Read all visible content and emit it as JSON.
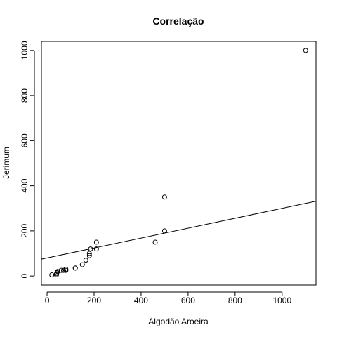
{
  "chart_data": {
    "type": "scatter",
    "title": "Correlação",
    "xlabel": "Algodão Aroeira",
    "ylabel": "Jerimum",
    "xlim": [
      -24,
      1144
    ],
    "ylim": [
      -40,
      1040
    ],
    "xticks": [
      0,
      200,
      400,
      600,
      800,
      1000
    ],
    "yticks": [
      0,
      200,
      400,
      600,
      800,
      1000
    ],
    "points": [
      {
        "x": 20,
        "y": 5
      },
      {
        "x": 40,
        "y": 5
      },
      {
        "x": 40,
        "y": 10
      },
      {
        "x": 42,
        "y": 15
      },
      {
        "x": 45,
        "y": 20
      },
      {
        "x": 60,
        "y": 25
      },
      {
        "x": 70,
        "y": 25
      },
      {
        "x": 80,
        "y": 25
      },
      {
        "x": 80,
        "y": 30
      },
      {
        "x": 120,
        "y": 35
      },
      {
        "x": 120,
        "y": 35
      },
      {
        "x": 150,
        "y": 50
      },
      {
        "x": 165,
        "y": 70
      },
      {
        "x": 180,
        "y": 90
      },
      {
        "x": 180,
        "y": 100
      },
      {
        "x": 185,
        "y": 120
      },
      {
        "x": 210,
        "y": 120
      },
      {
        "x": 210,
        "y": 150
      },
      {
        "x": 460,
        "y": 150
      },
      {
        "x": 500,
        "y": 200
      },
      {
        "x": 500,
        "y": 350
      },
      {
        "x": 1100,
        "y": 1000
      }
    ],
    "fit_line": {
      "intercept": 80,
      "slope": 0.22
    },
    "grid": false
  }
}
